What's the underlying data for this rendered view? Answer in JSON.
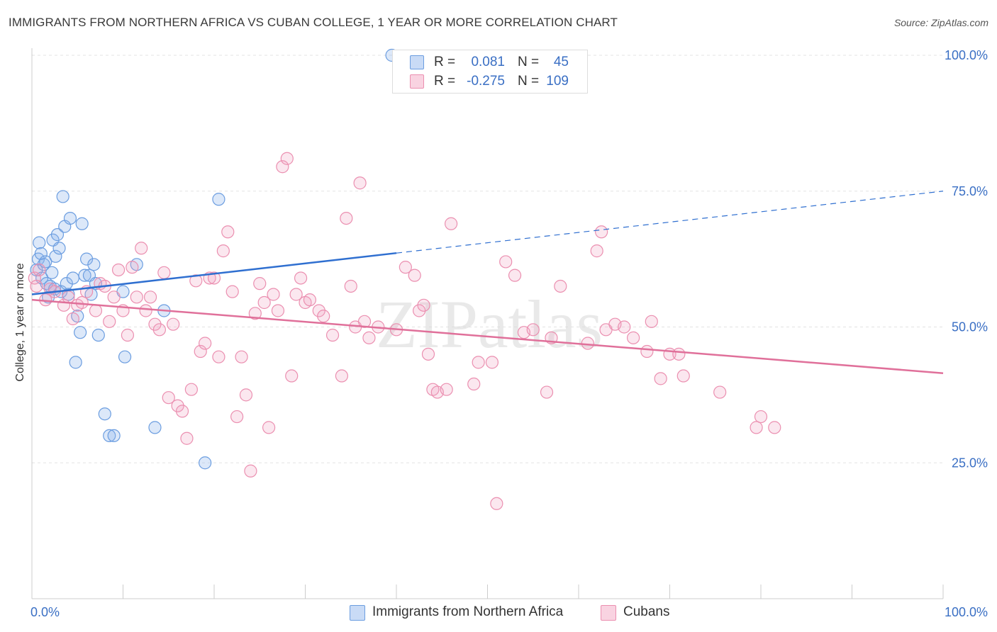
{
  "title": "IMMIGRANTS FROM NORTHERN AFRICA VS CUBAN COLLEGE, 1 YEAR OR MORE CORRELATION CHART",
  "source": "Source: ZipAtlas.com",
  "watermark": "ZIPatlas",
  "legend": {
    "r_label": "R =",
    "n_label": "N =",
    "rows": [
      {
        "r": "0.081",
        "n": "45",
        "color": "#6b9de0"
      },
      {
        "r": "-0.275",
        "n": "109",
        "color": "#eb8fb0"
      }
    ]
  },
  "bottom_legend": [
    {
      "label": "Immigrants from Northern Africa",
      "color": "#6b9de0"
    },
    {
      "label": "Cubans",
      "color": "#eb8fb0"
    }
  ],
  "chart_data": {
    "type": "scatter",
    "title": "IMMIGRANTS FROM NORTHERN AFRICA VS CUBAN COLLEGE, 1 YEAR OR MORE CORRELATION CHART",
    "xlabel": "",
    "ylabel": "College, 1 year or more",
    "xlim": [
      0,
      100
    ],
    "ylim": [
      0,
      100
    ],
    "x_tick_labels": [
      "0.0%",
      "100.0%"
    ],
    "y_tick_labels": [
      "100.0%",
      "75.0%",
      "50.0%",
      "25.0%"
    ],
    "y_ticks": [
      100,
      75,
      50,
      25
    ],
    "grid": true,
    "legend_position": "top-center",
    "series": [
      {
        "name": "Immigrants from Northern Africa",
        "color": "#6b9de0",
        "line_color": "#2f6fd0",
        "trend": {
          "x0": 0,
          "y0": 56,
          "x1_solid": 40,
          "x1": 100,
          "y1": 75,
          "dashed_after": 40
        },
        "points": [
          [
            0.5,
            60.5
          ],
          [
            0.7,
            62.5
          ],
          [
            0.8,
            65.5
          ],
          [
            1.0,
            63.5
          ],
          [
            1.1,
            59.0
          ],
          [
            1.3,
            61.5
          ],
          [
            1.5,
            62.0
          ],
          [
            1.6,
            58.0
          ],
          [
            1.8,
            55.5
          ],
          [
            2.0,
            57.5
          ],
          [
            2.2,
            60.0
          ],
          [
            2.3,
            66.0
          ],
          [
            2.5,
            57.0
          ],
          [
            2.6,
            63.0
          ],
          [
            2.8,
            67.0
          ],
          [
            3.0,
            64.5
          ],
          [
            3.2,
            56.5
          ],
          [
            3.4,
            74.0
          ],
          [
            3.6,
            68.5
          ],
          [
            3.8,
            58.0
          ],
          [
            4.0,
            56.0
          ],
          [
            4.2,
            70.0
          ],
          [
            4.5,
            59.0
          ],
          [
            4.8,
            43.5
          ],
          [
            5.0,
            52.0
          ],
          [
            5.3,
            49.0
          ],
          [
            5.5,
            69.0
          ],
          [
            5.8,
            59.5
          ],
          [
            6.0,
            62.5
          ],
          [
            6.3,
            59.5
          ],
          [
            6.5,
            56.0
          ],
          [
            6.8,
            61.5
          ],
          [
            7.0,
            58.0
          ],
          [
            7.3,
            48.5
          ],
          [
            8.0,
            34.0
          ],
          [
            8.5,
            30.0
          ],
          [
            9.0,
            30.0
          ],
          [
            10.0,
            56.5
          ],
          [
            10.2,
            44.5
          ],
          [
            11.5,
            61.5
          ],
          [
            13.5,
            31.5
          ],
          [
            14.5,
            53.0
          ],
          [
            19.0,
            25.0
          ],
          [
            20.5,
            73.5
          ],
          [
            39.5,
            100.0
          ]
        ]
      },
      {
        "name": "Cubans",
        "color": "#eb8fb0",
        "line_color": "#e0709a",
        "trend": {
          "x0": 0,
          "y0": 55,
          "x1": 100,
          "y1": 41.5
        },
        "points": [
          [
            0.3,
            59.0
          ],
          [
            0.5,
            57.5
          ],
          [
            0.8,
            60.5
          ],
          [
            1.5,
            55.0
          ],
          [
            2.0,
            57.0
          ],
          [
            2.5,
            56.5
          ],
          [
            3.5,
            54.0
          ],
          [
            4.0,
            55.5
          ],
          [
            4.5,
            51.5
          ],
          [
            5.0,
            54.0
          ],
          [
            5.5,
            54.5
          ],
          [
            6.0,
            56.5
          ],
          [
            7.0,
            53.0
          ],
          [
            7.5,
            58.0
          ],
          [
            8.0,
            57.5
          ],
          [
            8.5,
            51.0
          ],
          [
            9.0,
            55.5
          ],
          [
            9.5,
            60.5
          ],
          [
            10.0,
            53.0
          ],
          [
            10.5,
            48.5
          ],
          [
            11.0,
            61.0
          ],
          [
            11.5,
            55.5
          ],
          [
            12.0,
            64.5
          ],
          [
            12.5,
            53.0
          ],
          [
            13.0,
            55.5
          ],
          [
            13.5,
            50.5
          ],
          [
            14.0,
            49.5
          ],
          [
            14.5,
            60.0
          ],
          [
            15.0,
            37.0
          ],
          [
            15.5,
            50.5
          ],
          [
            16.0,
            35.5
          ],
          [
            16.5,
            34.5
          ],
          [
            17.0,
            29.5
          ],
          [
            17.5,
            38.5
          ],
          [
            18.0,
            58.5
          ],
          [
            18.5,
            45.5
          ],
          [
            19.0,
            47.0
          ],
          [
            19.5,
            59.0
          ],
          [
            20.0,
            59.0
          ],
          [
            20.5,
            44.5
          ],
          [
            21.0,
            64.0
          ],
          [
            21.5,
            67.5
          ],
          [
            22.0,
            56.5
          ],
          [
            22.5,
            33.5
          ],
          [
            23.0,
            44.5
          ],
          [
            23.5,
            37.5
          ],
          [
            24.0,
            23.5
          ],
          [
            24.5,
            52.5
          ],
          [
            25.0,
            58.0
          ],
          [
            25.5,
            54.5
          ],
          [
            26.0,
            31.5
          ],
          [
            26.5,
            56.0
          ],
          [
            27.0,
            53.0
          ],
          [
            27.5,
            79.5
          ],
          [
            28.0,
            81.0
          ],
          [
            28.5,
            41.0
          ],
          [
            29.0,
            56.0
          ],
          [
            29.5,
            59.0
          ],
          [
            30.0,
            54.5
          ],
          [
            30.5,
            55.0
          ],
          [
            31.5,
            53.0
          ],
          [
            32.0,
            52.0
          ],
          [
            33.0,
            48.5
          ],
          [
            34.0,
            41.0
          ],
          [
            34.5,
            70.0
          ],
          [
            35.0,
            57.5
          ],
          [
            35.5,
            50.0
          ],
          [
            36.0,
            76.5
          ],
          [
            36.5,
            51.0
          ],
          [
            37.0,
            48.0
          ],
          [
            38.0,
            50.0
          ],
          [
            40.0,
            49.5
          ],
          [
            41.0,
            61.0
          ],
          [
            42.0,
            59.5
          ],
          [
            42.5,
            53.0
          ],
          [
            43.0,
            54.0
          ],
          [
            43.5,
            45.0
          ],
          [
            44.0,
            38.5
          ],
          [
            44.5,
            38.0
          ],
          [
            45.5,
            38.5
          ],
          [
            46.0,
            69.0
          ],
          [
            48.5,
            39.5
          ],
          [
            49.0,
            43.5
          ],
          [
            50.5,
            43.5
          ],
          [
            52.0,
            62.0
          ],
          [
            53.0,
            59.5
          ],
          [
            54.0,
            49.0
          ],
          [
            55.0,
            49.5
          ],
          [
            56.5,
            38.0
          ],
          [
            57.0,
            48.0
          ],
          [
            58.0,
            57.5
          ],
          [
            61.0,
            47.0
          ],
          [
            62.0,
            64.0
          ],
          [
            62.5,
            67.5
          ],
          [
            63.0,
            49.5
          ],
          [
            64.0,
            50.5
          ],
          [
            65.0,
            50.0
          ],
          [
            66.0,
            48.0
          ],
          [
            67.5,
            45.5
          ],
          [
            68.0,
            51.0
          ],
          [
            69.0,
            40.5
          ],
          [
            70.0,
            45.0
          ],
          [
            71.0,
            45.0
          ],
          [
            71.5,
            41.0
          ],
          [
            75.5,
            38.0
          ],
          [
            79.5,
            31.5
          ],
          [
            80.0,
            33.5
          ],
          [
            81.5,
            31.5
          ],
          [
            51.0,
            17.5
          ]
        ]
      }
    ]
  }
}
